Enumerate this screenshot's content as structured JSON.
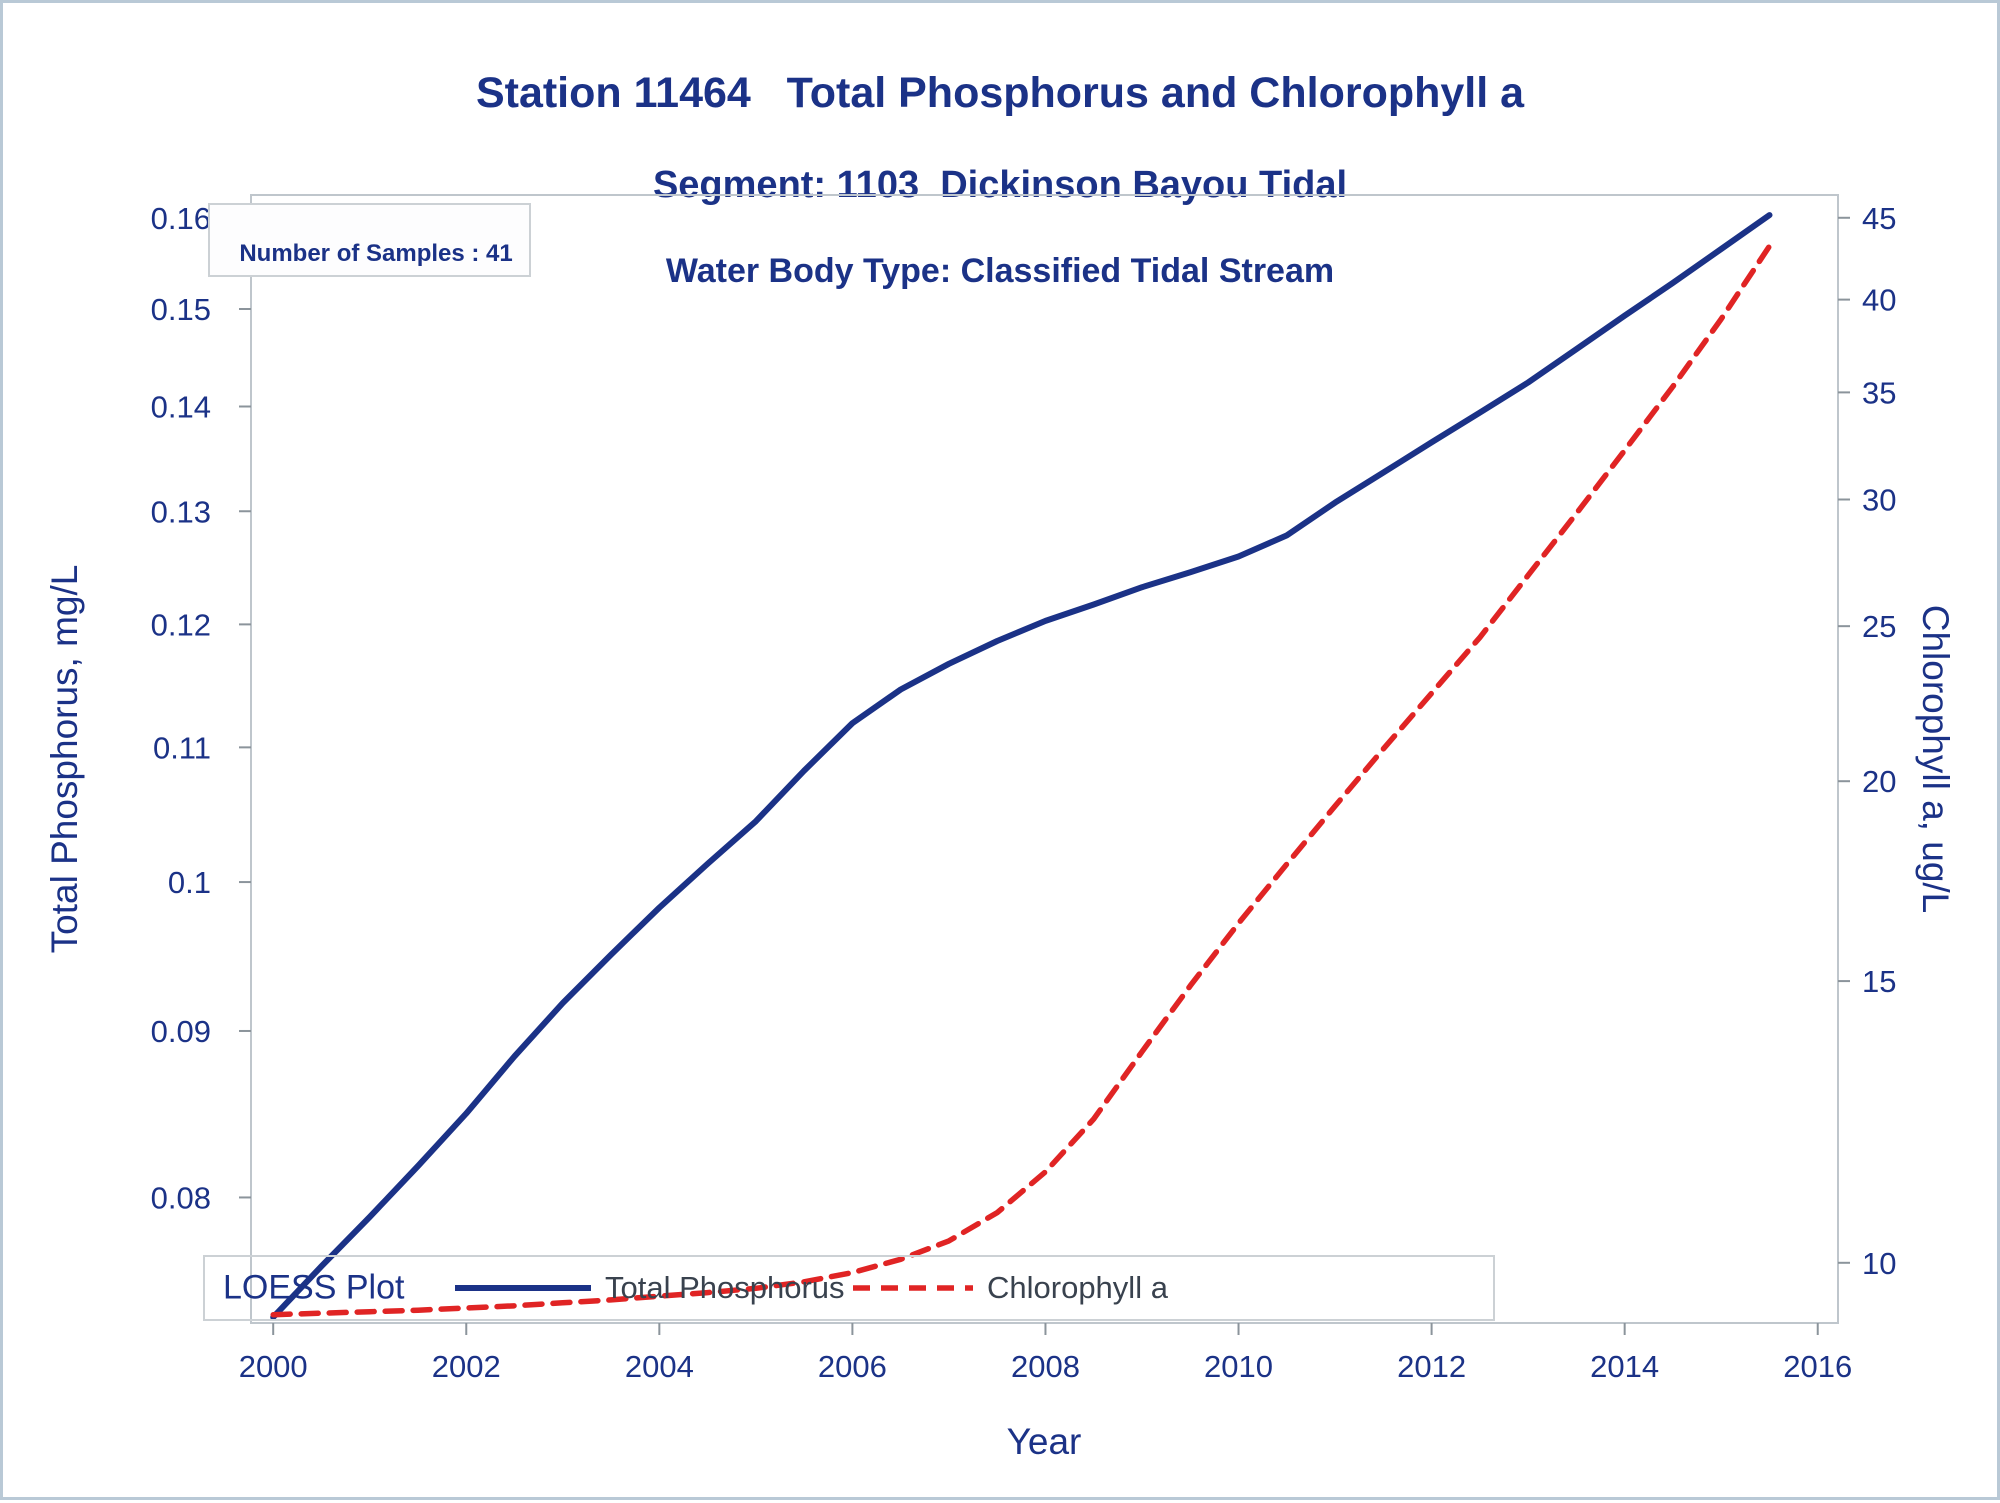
{
  "title": {
    "line1": "Station 11464   Total Phosphorus and Chlorophyll a",
    "line2": "Segment: 1103  Dickinson Bayou Tidal",
    "line3": "Water Body Type: Classified Tidal Stream"
  },
  "inset": {
    "text": "Number of Samples : 41"
  },
  "legend": {
    "title": "LOESS Plot",
    "items": [
      {
        "label": "Total Phosphorus",
        "style": "solid",
        "color": "#1b3287"
      },
      {
        "label": "Chlorophyll a",
        "style": "dashed",
        "color": "#e02424"
      }
    ]
  },
  "colors": {
    "text": "#1b3287",
    "tp_line": "#1b3287",
    "chl_line": "#e02424",
    "frame": "#bfc6cc",
    "tick": "#8b949b",
    "page_border": "#b9c9d6",
    "legend_label": "#39424e"
  },
  "chart_data": {
    "type": "line",
    "title": "Station 11464 Total Phosphorus and Chlorophyll a",
    "subtitle": "Segment: 1103 Dickinson Bayou Tidal",
    "subtitle2": "Water Body Type: Classified Tidal Stream",
    "xlabel": "Year",
    "ylabel_left": "Total Phosphorus, mg/L",
    "ylabel_right": "Chlorophyll a, ug/L",
    "grid": false,
    "legend_position": "bottom-inside",
    "annotations": [
      "Number of Samples : 41",
      "LOESS Plot"
    ],
    "x_axis": {
      "scale": "linear",
      "min": 1999.77,
      "max": 2016.21,
      "ticks": [
        2000,
        2002,
        2004,
        2006,
        2008,
        2010,
        2012,
        2014,
        2016
      ],
      "tick_labels": [
        "2000",
        "2002",
        "2004",
        "2006",
        "2008",
        "2010",
        "2012",
        "2014",
        "2016"
      ]
    },
    "y_left": {
      "scale": "log",
      "min": 0.0732,
      "max": 0.1626,
      "ticks": [
        0.08,
        0.09,
        0.1,
        0.11,
        0.12,
        0.13,
        0.14,
        0.15,
        0.16
      ],
      "tick_labels": [
        "0.08",
        "0.09",
        "0.1",
        "0.11",
        "0.12",
        "0.13",
        "0.14",
        "0.15",
        "0.16"
      ]
    },
    "y_right": {
      "scale": "log",
      "min": 9.17,
      "max": 46.5,
      "ticks": [
        10,
        15,
        20,
        25,
        30,
        35,
        40,
        45
      ],
      "tick_labels": [
        "10",
        "15",
        "20",
        "25",
        "30",
        "35",
        "40",
        "45"
      ]
    },
    "series": [
      {
        "name": "Total Phosphorus",
        "axis": "left",
        "color": "#1b3287",
        "width": 6,
        "dash": null,
        "x": [
          2000,
          2000.5,
          2001,
          2001.5,
          2002,
          2002.5,
          2003,
          2003.5,
          2004,
          2004.5,
          2005,
          2005.5,
          2006,
          2006.5,
          2007,
          2007.5,
          2008,
          2008.5,
          2009,
          2009.5,
          2010,
          2010.5,
          2011,
          2011.5,
          2012,
          2012.5,
          2013,
          2013.5,
          2014,
          2014.5,
          2015,
          2015.5
        ],
        "y": [
          0.0735,
          0.0762,
          0.0789,
          0.0818,
          0.0849,
          0.0884,
          0.0918,
          0.095,
          0.0982,
          0.1013,
          0.1044,
          0.1082,
          0.1119,
          0.1146,
          0.1167,
          0.1186,
          0.1203,
          0.1217,
          0.1232,
          0.1245,
          0.1259,
          0.1278,
          0.1308,
          0.1336,
          0.1365,
          0.1394,
          0.1424,
          0.1458,
          0.1493,
          0.1528,
          0.1565,
          0.1603
        ]
      },
      {
        "name": "Chlorophyll a",
        "axis": "right",
        "color": "#e02424",
        "width": 5.5,
        "dash": [
          17,
          11
        ],
        "x": [
          2000,
          2000.5,
          2001,
          2001.5,
          2002,
          2002.5,
          2003,
          2003.5,
          2004,
          2004.5,
          2005,
          2005.5,
          2006,
          2006.5,
          2007,
          2007.5,
          2008,
          2008.5,
          2009,
          2009.5,
          2010,
          2010.5,
          2011,
          2011.5,
          2012,
          2012.5,
          2013,
          2013.5,
          2014,
          2014.5,
          2015,
          2015.5
        ],
        "y": [
          9.28,
          9.3,
          9.32,
          9.34,
          9.37,
          9.4,
          9.44,
          9.48,
          9.53,
          9.58,
          9.64,
          9.73,
          9.86,
          10.05,
          10.32,
          10.75,
          11.4,
          12.3,
          13.55,
          14.9,
          16.3,
          17.75,
          19.3,
          20.95,
          22.7,
          24.6,
          26.9,
          29.4,
          32.2,
          35.3,
          38.9,
          43.2
        ]
      }
    ]
  }
}
